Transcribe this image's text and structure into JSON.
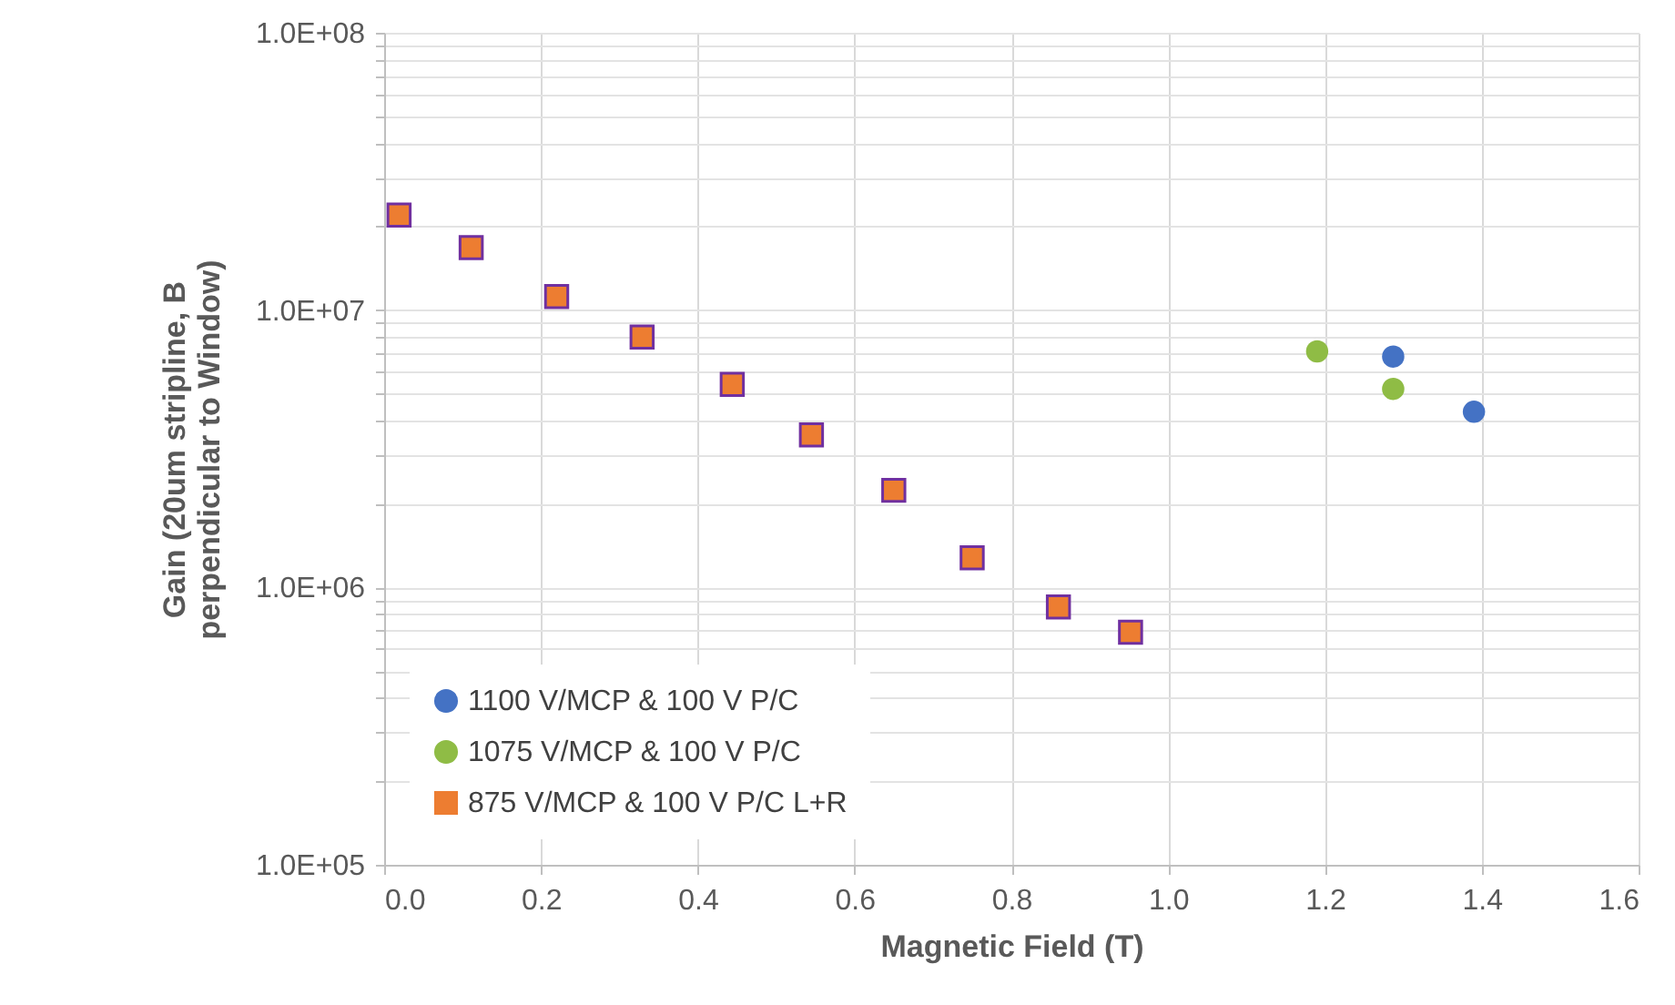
{
  "chart_data": {
    "type": "scatter",
    "xlabel": "Magnetic Field (T)",
    "ylabel": "Gain (20um stripline, B perpendicular to Window)",
    "series": [
      {
        "name": "1100 V/MCP & 100 V P/C",
        "color": "#4472c4",
        "marker": "circle",
        "x": [
          1.287,
          1.39
        ],
        "values": [
          6800000,
          4300000
        ]
      },
      {
        "name": "1075 V/MCP & 100 V P/C",
        "color": "#8fbc45",
        "marker": "circle",
        "x": [
          1.19,
          1.287
        ],
        "values": [
          7100000,
          5200000
        ]
      },
      {
        "name": "875 V/MCP & 100 V P/C L+R",
        "color": "#ed7d31",
        "marker": "square",
        "x": [
          0.019,
          0.111,
          0.22,
          0.329,
          0.444,
          0.545,
          0.65,
          0.75,
          0.86,
          0.952
        ],
        "values": [
          22000000,
          16800000,
          11200000,
          8000000,
          5400000,
          3550000,
          2240000,
          1280000,
          850000,
          690000
        ]
      }
    ],
    "log": "y",
    "xlim": [
      0,
      1.6
    ],
    "ylim": [
      100000,
      100000000
    ],
    "xticks": [
      {
        "value": 0,
        "label": "0.0"
      },
      0.2,
      0.4,
      0.6,
      0.8,
      {
        "value": 1,
        "label": "1.0"
      },
      1.2,
      1.4,
      1.6
    ],
    "yticks": [
      {
        "value": 100000,
        "label": "1.0E+05"
      },
      {
        "value": 200000,
        "label": null
      },
      {
        "value": 300000,
        "label": null
      },
      {
        "value": 400000,
        "label": null
      },
      {
        "value": 500000,
        "label": null
      },
      {
        "value": 600000,
        "label": null
      },
      {
        "value": 700000,
        "label": null
      },
      {
        "value": 800000,
        "label": null
      },
      {
        "value": 900000,
        "label": null
      },
      {
        "value": 1000000,
        "label": "1.0E+06"
      },
      {
        "value": 2000000,
        "label": null
      },
      {
        "value": 3000000,
        "label": null
      },
      {
        "value": 4000000,
        "label": null
      },
      {
        "value": 5000000,
        "label": null
      },
      {
        "value": 6000000,
        "label": null
      },
      {
        "value": 7000000,
        "label": null
      },
      {
        "value": 8000000,
        "label": null
      },
      {
        "value": 9000000,
        "label": null
      },
      {
        "value": 10000000,
        "label": "1.0E+07"
      },
      {
        "value": 20000000,
        "label": null
      },
      {
        "value": 30000000,
        "label": null
      },
      {
        "value": 40000000,
        "label": null
      },
      {
        "value": 50000000,
        "label": null
      },
      {
        "value": 60000000,
        "label": null
      },
      {
        "value": 70000000,
        "label": null
      },
      {
        "value": 80000000,
        "label": null
      },
      {
        "value": 90000000,
        "label": null
      },
      {
        "value": 100000000,
        "label": "1.0E+08"
      }
    ],
    "grid": true,
    "legend": "bottom left"
  }
}
